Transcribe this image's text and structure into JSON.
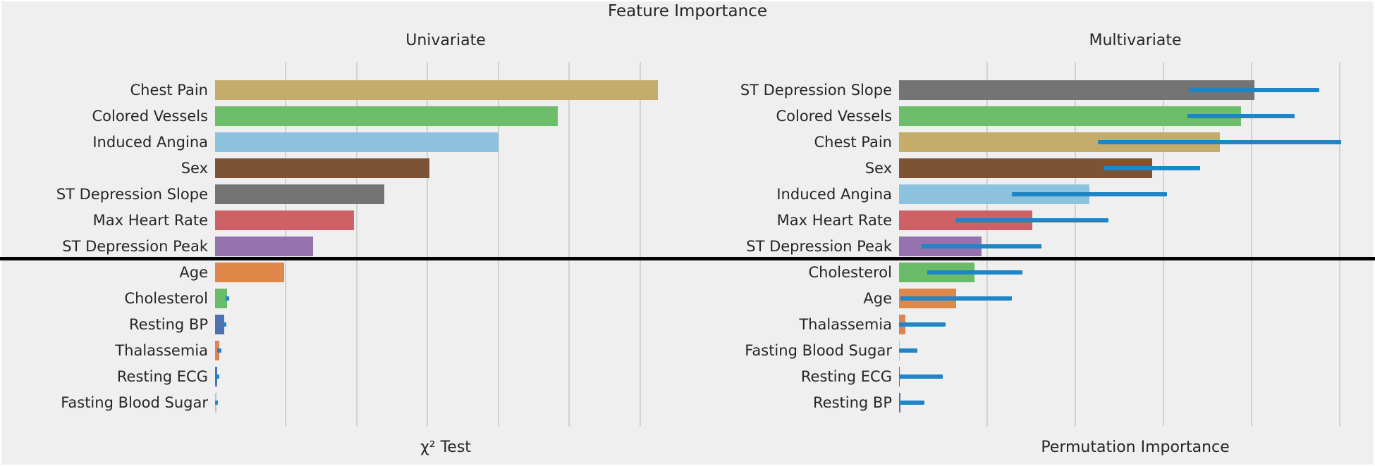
{
  "title": "Feature Importance",
  "colors": {
    "figure_background": "#efeff0",
    "grid": "#d2d2d2",
    "text": "#262626",
    "divider": "#000000",
    "error_bar": "#1e85c7"
  },
  "divider_note": "thick black horizontal rule across full figure separating top 7 features from bottom 6",
  "chart_data": [
    {
      "type": "bar",
      "orientation": "horizontal",
      "title": "Univariate",
      "xlabel": "χ² Test",
      "xlim": [
        0,
        6.52
      ],
      "gridlines_x": [
        1,
        2,
        3,
        4,
        5,
        6
      ],
      "grid": true,
      "x_tick_labels_shown": false,
      "divider_after_index": 6,
      "categories": [
        "Chest Pain",
        "Colored Vessels",
        "Induced Angina",
        "Sex",
        "ST Depression Slope",
        "Max Heart Rate",
        "ST Depression Peak",
        "Age",
        "Cholesterol",
        "Resting BP",
        "Thalassemia",
        "Resting ECG",
        "Fasting Blood Sugar"
      ],
      "values": [
        6.25,
        4.84,
        4.0,
        3.03,
        2.39,
        1.96,
        1.38,
        0.98,
        0.17,
        0.13,
        0.06,
        0.03,
        0.015
      ],
      "errors": [
        null,
        null,
        null,
        null,
        null,
        null,
        null,
        null,
        0.025,
        0.025,
        0.03,
        0.025,
        0.015
      ],
      "bar_colors": [
        "#c4ad6a",
        "#6dbd6b",
        "#8cc2dd",
        "#7d5335",
        "#747474",
        "#cd6165",
        "#9571ae",
        "#e0874a",
        "#6abc69",
        "#4c72b0",
        "#dd8452",
        "#4c72b0",
        "#a2cbe2"
      ]
    },
    {
      "type": "bar",
      "orientation": "horizontal",
      "title": "Multivariate",
      "xlabel": "Permutation Importance",
      "xlim": [
        0,
        5.37
      ],
      "gridlines_x": [
        1,
        2,
        3,
        4,
        5
      ],
      "grid": true,
      "x_tick_labels_shown": false,
      "divider_after_index": 6,
      "categories": [
        "ST Depression Slope",
        "Colored Vessels",
        "Chest Pain",
        "Sex",
        "Induced Angina",
        "Max Heart Rate",
        "ST Depression Peak",
        "Cholesterol",
        "Age",
        "Thalassemia",
        "Fasting Blood Sugar",
        "Resting ECG",
        "Resting BP"
      ],
      "values": [
        4.03,
        3.88,
        3.64,
        2.87,
        2.16,
        1.51,
        0.94,
        0.86,
        0.65,
        0.07,
        0.01,
        0.01,
        0.02
      ],
      "errors": [
        0.74,
        0.61,
        1.38,
        0.55,
        0.88,
        0.87,
        0.68,
        0.54,
        0.63,
        0.46,
        0.2,
        0.49,
        0.27
      ],
      "bar_colors": [
        "#747474",
        "#6dbd6b",
        "#c4ad6a",
        "#7d5335",
        "#8cc2dd",
        "#cd6165",
        "#9571ae",
        "#6abc69",
        "#e0874a",
        "#dd8452",
        "#a2cbe2",
        "#4c72b0",
        "#4c72b0"
      ]
    }
  ]
}
